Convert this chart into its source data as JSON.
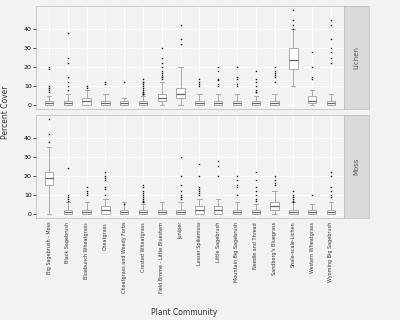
{
  "categories": [
    "Big Sagebrush - Moss",
    "Black Sagebrush",
    "Bluebunch Wheatgrass",
    "Cheatgrass",
    "Cheatgrass and Weedy Forbs",
    "Crested Wheatgrass",
    "Field Brome - Little Bluestem",
    "Juniper",
    "Lesser Spikemoss",
    "Little Sagebrush",
    "Mountain Big Sagebrush",
    "Needle and Thread",
    "Sandberg's Bluegrass",
    "Shale-scale-Lichen",
    "Western Wheatgrass",
    "Wyoming Big Sagebrush"
  ],
  "lichen": {
    "medians": [
      1,
      1,
      2,
      1,
      1,
      1,
      4,
      6,
      1,
      1,
      1,
      1,
      1,
      24,
      2,
      1
    ],
    "q1": [
      0,
      0,
      0,
      0,
      0,
      0,
      2,
      4,
      0,
      0,
      0,
      0,
      0,
      19,
      1,
      0
    ],
    "q3": [
      2,
      2,
      4,
      2,
      2,
      2,
      6,
      9,
      2,
      2,
      2,
      2,
      2,
      30,
      5,
      2
    ],
    "whislo": [
      0,
      0,
      0,
      0,
      0,
      0,
      0,
      0,
      0,
      0,
      0,
      0,
      0,
      10,
      0,
      0
    ],
    "whishi": [
      5,
      6,
      8,
      6,
      4,
      5,
      12,
      20,
      6,
      6,
      6,
      5,
      6,
      40,
      8,
      6
    ],
    "fliers_y": [
      [
        20,
        19,
        10,
        9,
        8,
        7
      ],
      [
        38,
        25,
        22,
        15,
        12,
        10,
        8
      ],
      [
        10,
        9
      ],
      [
        12,
        11
      ],
      [
        12
      ],
      [
        14,
        12,
        12,
        11,
        10,
        9,
        8,
        7,
        7,
        6,
        6,
        6,
        6
      ],
      [
        30,
        25,
        22,
        20,
        18,
        17,
        16,
        15,
        15,
        14
      ],
      [
        42,
        35,
        32
      ],
      [
        14,
        12,
        11,
        10
      ],
      [
        20,
        18,
        14,
        13,
        11,
        10
      ],
      [
        20,
        15,
        14,
        11,
        10
      ],
      [
        18,
        14,
        12,
        10,
        8,
        7,
        7
      ],
      [
        20,
        18,
        17,
        16,
        15,
        12
      ],
      [
        50,
        45,
        42,
        40
      ],
      [
        28,
        20,
        15,
        14
      ],
      [
        45,
        42,
        35,
        30,
        28,
        25,
        22
      ]
    ]
  },
  "moss": {
    "medians": [
      19,
      1,
      1,
      2,
      1,
      1,
      1,
      1,
      2,
      2,
      1,
      1,
      4,
      1,
      1,
      1
    ],
    "q1": [
      15,
      0,
      0,
      0,
      0,
      0,
      0,
      0,
      0,
      0,
      0,
      0,
      2,
      0,
      0,
      0
    ],
    "q3": [
      22,
      2,
      2,
      4,
      2,
      2,
      2,
      2,
      4,
      4,
      2,
      2,
      6,
      2,
      2,
      2
    ],
    "whislo": [
      0,
      0,
      0,
      0,
      0,
      0,
      0,
      0,
      0,
      0,
      0,
      0,
      0,
      0,
      0,
      0
    ],
    "whishi": [
      35,
      6,
      6,
      8,
      6,
      5,
      6,
      6,
      8,
      8,
      6,
      5,
      12,
      6,
      5,
      6
    ],
    "fliers_y": [
      [
        50,
        42,
        38
      ],
      [
        24,
        10,
        9,
        8,
        7
      ],
      [
        14,
        12,
        11,
        10
      ],
      [
        22,
        20,
        19,
        18,
        14,
        13,
        10
      ],
      [
        5
      ],
      [
        15,
        14,
        12,
        11,
        10,
        9,
        8,
        7,
        7,
        6,
        6
      ],
      [],
      [
        30,
        20,
        15,
        12,
        10,
        9,
        8
      ],
      [
        26,
        20,
        14,
        13,
        12,
        11,
        10
      ],
      [
        28,
        25,
        20
      ],
      [
        20,
        18,
        15,
        14,
        10
      ],
      [
        22,
        18,
        14,
        12,
        10,
        8,
        7
      ],
      [
        20,
        18,
        16,
        15
      ],
      [
        12,
        10,
        9,
        8,
        7,
        6
      ],
      [
        10
      ],
      [
        22,
        20,
        14,
        12,
        10,
        9
      ]
    ]
  },
  "background_color": "#f2f2f2",
  "box_color": "white",
  "box_edge_color": "#aaaaaa",
  "median_color": "#666666",
  "whisker_color": "#aaaaaa",
  "flier_color": "black",
  "grid_color": "white",
  "strip_color": "#d9d9d9",
  "panel_label_color": "#555555",
  "ylabel": "Percent Cover",
  "xlabel": "Plant Community",
  "ylim": [
    -2,
    52
  ],
  "yticks": [
    0,
    10,
    20,
    30,
    40
  ]
}
